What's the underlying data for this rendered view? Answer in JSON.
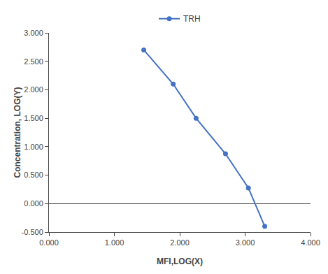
{
  "chart_data": {
    "type": "line",
    "x_label": "MFI,LOG(X)",
    "y_label": "Concentration, LOG(Y)",
    "x": [
      1.45,
      1.9,
      2.25,
      2.7,
      3.05,
      3.3
    ],
    "series": [
      {
        "name": "TRH",
        "color": "#4472C4",
        "marker": "circle",
        "values": [
          2.7,
          2.1,
          1.5,
          0.875,
          0.275,
          -0.4
        ]
      }
    ],
    "xlim": [
      0.0,
      4.0
    ],
    "ylim": [
      -0.5,
      3.0
    ],
    "xticks": [
      {
        "value": 0.0,
        "label": "0.000"
      },
      {
        "value": 1.0,
        "label": "1.000"
      },
      {
        "value": 2.0,
        "label": "2.000"
      },
      {
        "value": 3.0,
        "label": "3.000"
      },
      {
        "value": 4.0,
        "label": "4.000"
      }
    ],
    "yticks": [
      {
        "value": -0.5,
        "label": "-0.500"
      },
      {
        "value": 0.0,
        "label": "0.000"
      },
      {
        "value": 0.5,
        "label": "0.500"
      },
      {
        "value": 1.0,
        "label": "1.000"
      },
      {
        "value": 1.5,
        "label": "1.500"
      },
      {
        "value": 2.0,
        "label": "2.000"
      },
      {
        "value": 2.5,
        "label": "2.500"
      },
      {
        "value": 3.0,
        "label": "3.000"
      }
    ],
    "grid": false,
    "legend": "top"
  }
}
